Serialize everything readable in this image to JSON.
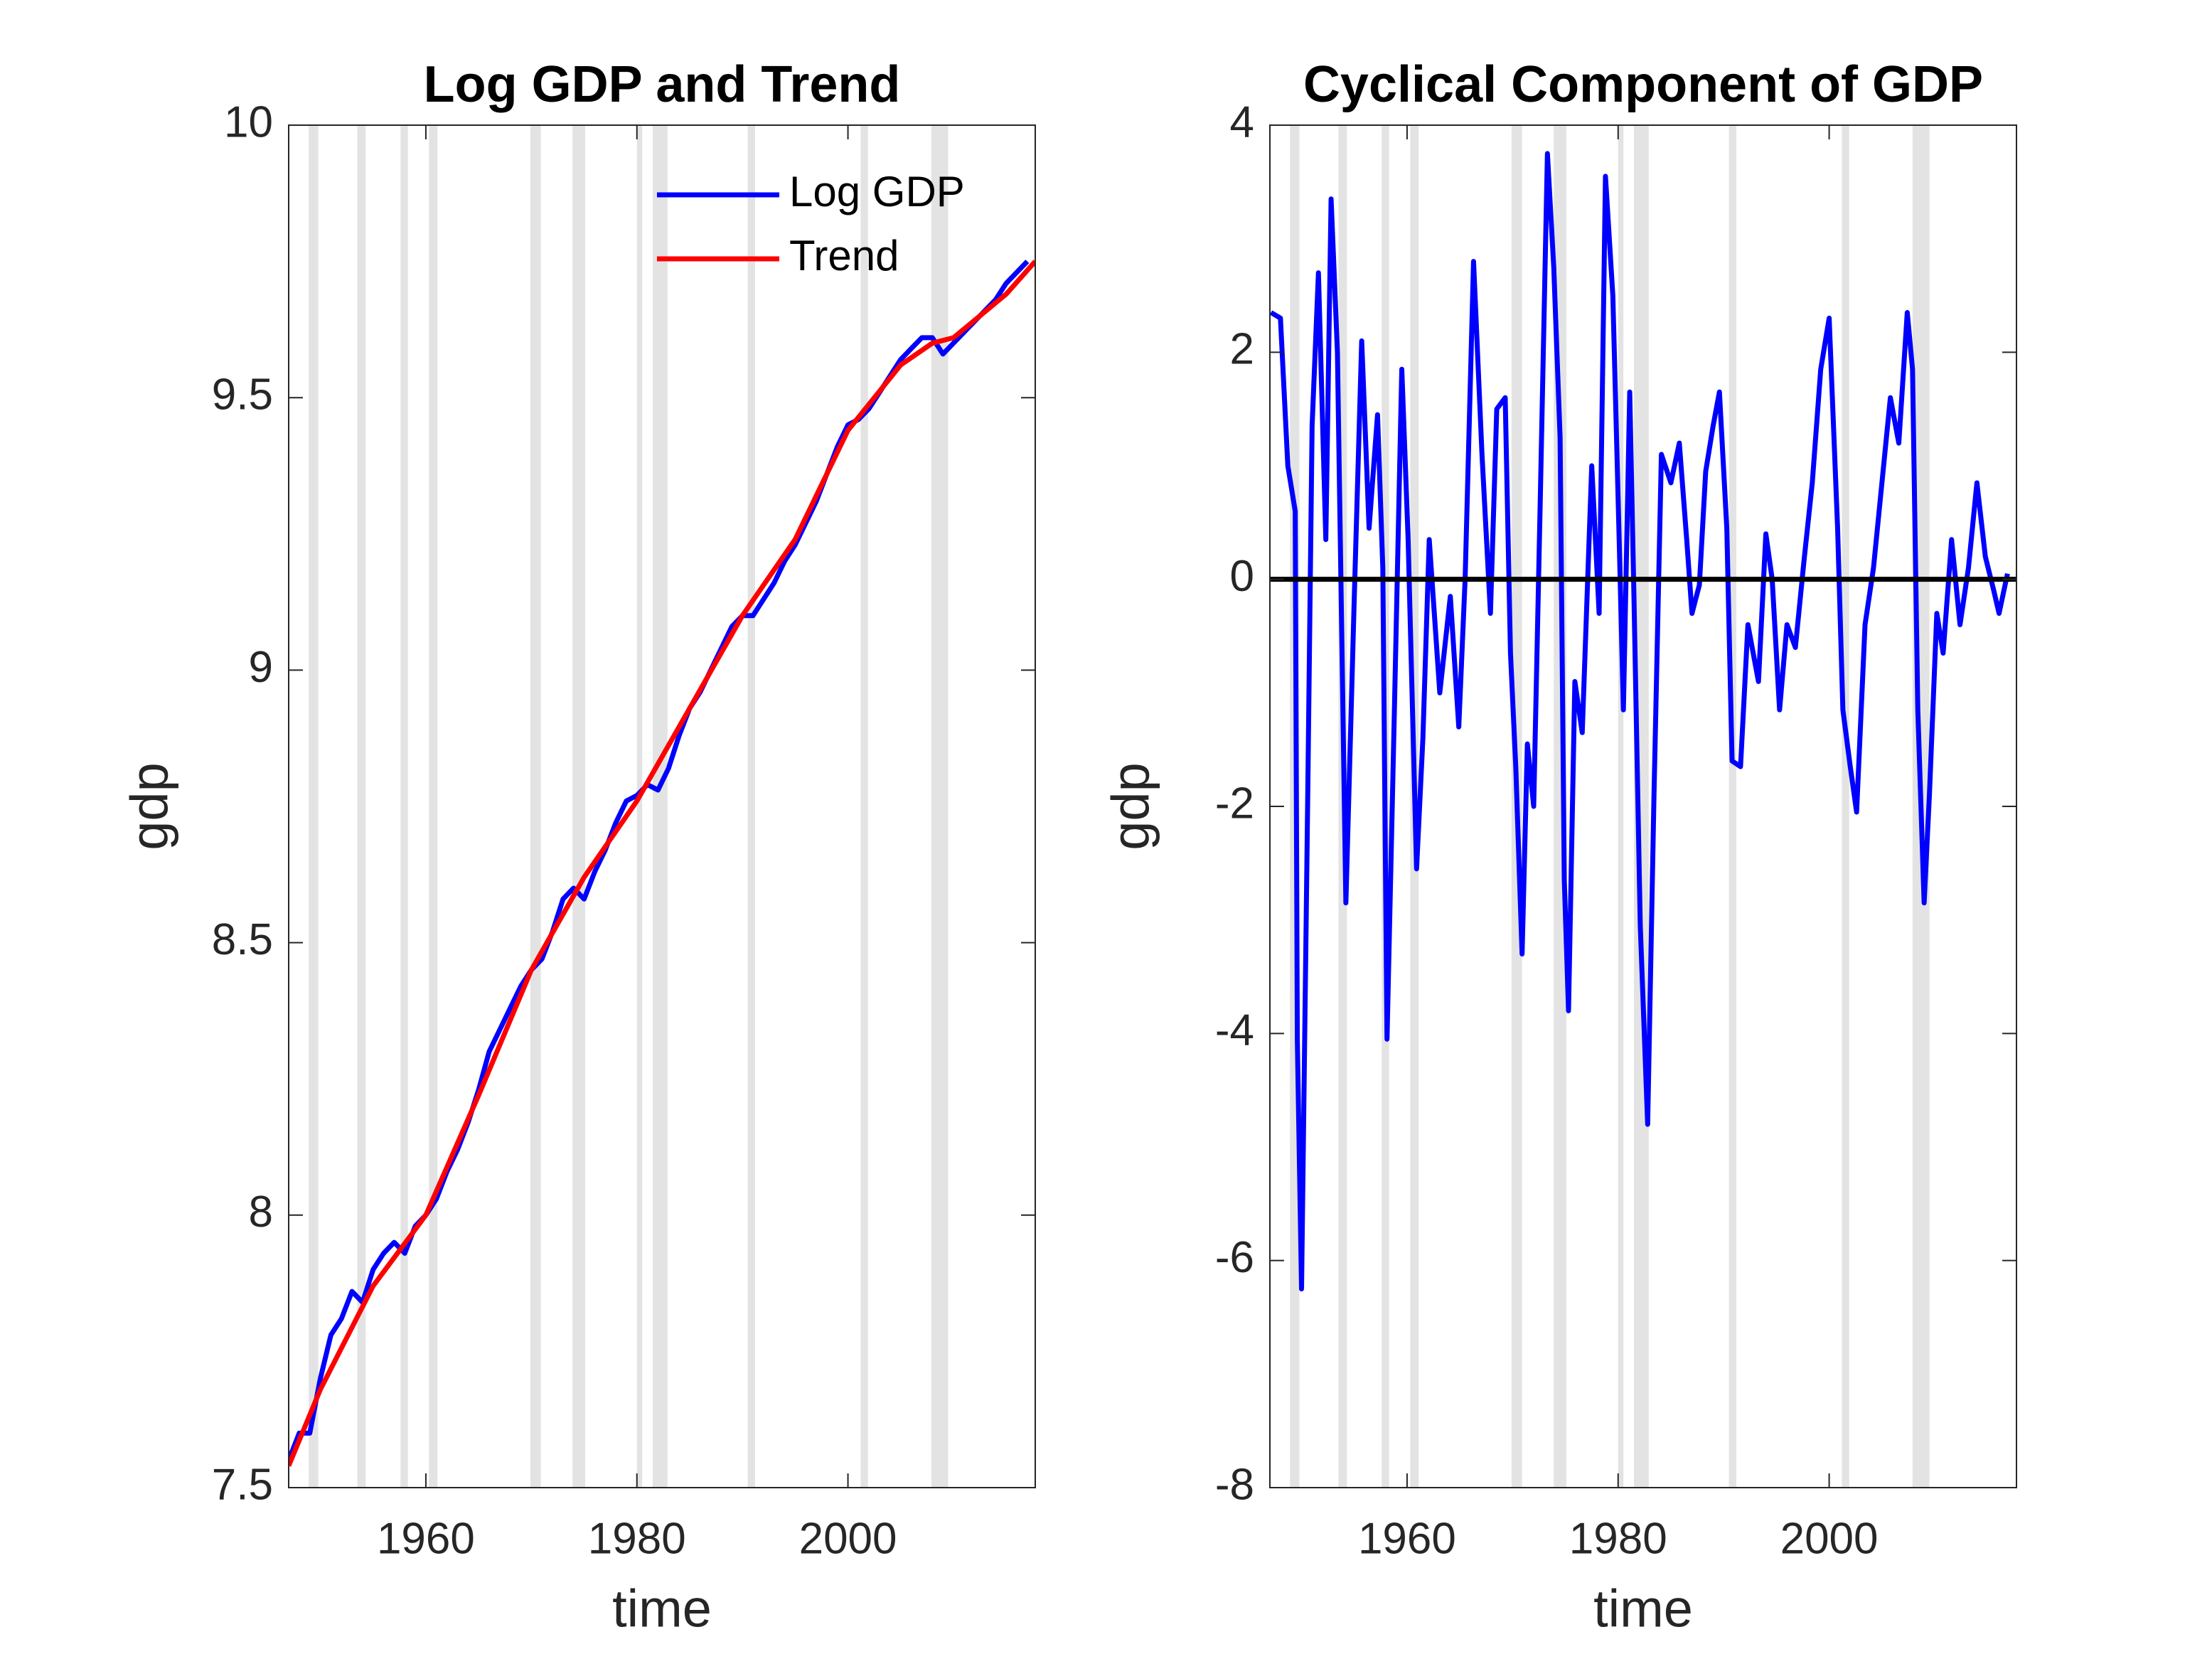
{
  "chart_data": [
    {
      "type": "line",
      "title": "Log GDP and Trend",
      "xlabel": "time",
      "ylabel": "gdp",
      "xlim": [
        1947,
        2017.75
      ],
      "xticks": [
        1960,
        1980,
        2000
      ],
      "ylim": [
        7.5,
        10
      ],
      "yticks": [
        7.5,
        8,
        8.5,
        9,
        9.5,
        10
      ],
      "legend": "upper right",
      "shade_color": "#e3e3e3",
      "shaded_regions": [
        [
          1948.9,
          1949.8
        ],
        [
          1953.5,
          1954.3
        ],
        [
          1957.6,
          1958.3
        ],
        [
          1960.3,
          1961.1
        ],
        [
          1969.9,
          1970.9
        ],
        [
          1973.9,
          1975.1
        ],
        [
          1980.0,
          1980.5
        ],
        [
          1981.5,
          1982.9
        ],
        [
          1990.5,
          1991.2
        ],
        [
          2001.2,
          2001.9
        ],
        [
          2007.9,
          2009.5
        ]
      ],
      "series": [
        {
          "name": "Log GDP",
          "color": "#0000ff",
          "x": [
            1947,
            1948,
            1949,
            1950,
            1951,
            1952,
            1953,
            1954,
            1955,
            1956,
            1957,
            1958,
            1959,
            1960,
            1961,
            1962,
            1963,
            1964,
            1965,
            1966,
            1967,
            1968,
            1969,
            1970,
            1971,
            1972,
            1973,
            1974,
            1975,
            1976,
            1977,
            1978,
            1979,
            1980,
            1981,
            1982,
            1983,
            1984,
            1985,
            1986,
            1987,
            1988,
            1989,
            1990,
            1991,
            1992,
            1993,
            1994,
            1995,
            1996,
            1997,
            1998,
            1999,
            2000,
            2001,
            2002,
            2003,
            2004,
            2005,
            2006,
            2007,
            2008,
            2009,
            2010,
            2011,
            2012,
            2013,
            2014,
            2015,
            2016,
            2017
          ],
          "values": [
            7.55,
            7.6,
            7.6,
            7.7,
            7.78,
            7.81,
            7.86,
            7.84,
            7.9,
            7.93,
            7.95,
            7.93,
            7.98,
            8.0,
            8.03,
            8.08,
            8.12,
            8.17,
            8.23,
            8.3,
            8.34,
            8.38,
            8.42,
            8.45,
            8.47,
            8.52,
            8.58,
            8.6,
            8.58,
            8.63,
            8.67,
            8.72,
            8.76,
            8.77,
            8.79,
            8.78,
            8.82,
            8.88,
            8.93,
            8.96,
            9.0,
            9.04,
            9.08,
            9.1,
            9.1,
            9.13,
            9.16,
            9.2,
            9.23,
            9.27,
            9.31,
            9.36,
            9.41,
            9.45,
            9.46,
            9.48,
            9.51,
            9.54,
            9.57,
            9.59,
            9.61,
            9.61,
            9.58,
            9.6,
            9.62,
            9.64,
            9.66,
            9.68,
            9.71,
            9.73,
            9.75
          ]
        },
        {
          "name": "Trend",
          "color": "#ff0000",
          "x": [
            1947,
            1950,
            1955,
            1960,
            1965,
            1970,
            1975,
            1980,
            1985,
            1990,
            1995,
            2000,
            2005,
            2008,
            2010,
            2015,
            2017.75
          ],
          "values": [
            7.54,
            7.68,
            7.87,
            8.0,
            8.22,
            8.45,
            8.62,
            8.76,
            8.93,
            9.1,
            9.24,
            9.44,
            9.56,
            9.6,
            9.61,
            9.69,
            9.75
          ]
        }
      ]
    },
    {
      "type": "line",
      "title": "Cyclical Component of GDP",
      "xlabel": "time",
      "ylabel": "gdp",
      "xlim": [
        1947,
        2017.75
      ],
      "xticks": [
        1960,
        1980,
        2000
      ],
      "ylim": [
        -8,
        4
      ],
      "yticks": [
        -8,
        -6,
        -4,
        -2,
        0,
        2,
        4
      ],
      "hline": {
        "value": 0,
        "color": "#000000"
      },
      "shade_color": "#e3e3e3",
      "shaded_regions": [
        [
          1948.9,
          1949.8
        ],
        [
          1953.5,
          1954.3
        ],
        [
          1957.6,
          1958.3
        ],
        [
          1960.3,
          1961.1
        ],
        [
          1969.9,
          1970.9
        ],
        [
          1973.9,
          1975.1
        ],
        [
          1980.0,
          1980.5
        ],
        [
          1981.5,
          1982.9
        ],
        [
          1990.5,
          1991.2
        ],
        [
          2001.2,
          2001.9
        ],
        [
          2007.9,
          2009.5
        ]
      ],
      "series": [
        {
          "color": "#0000ff",
          "x": [
            1947.1,
            1948,
            1948.7,
            1949.4,
            1949.6,
            1950,
            1950.6,
            1951,
            1951.6,
            1952.3,
            1952.8,
            1953.4,
            1954.2,
            1955,
            1955.7,
            1956.4,
            1957.2,
            1957.7,
            1958.1,
            1958.8,
            1959.5,
            1960.1,
            1960.9,
            1961.5,
            1962.1,
            1963.1,
            1964.1,
            1964.9,
            1965.5,
            1966.3,
            1967.1,
            1967.9,
            1968.5,
            1969.3,
            1969.8,
            1970.3,
            1970.9,
            1971.4,
            1972,
            1972.6,
            1973.3,
            1973.9,
            1974.5,
            1974.9,
            1975.3,
            1975.9,
            1976.6,
            1977.5,
            1978.2,
            1978.8,
            1979.5,
            1980.1,
            1980.5,
            1981.1,
            1981.5,
            1982.1,
            1982.8,
            1983.4,
            1984.1,
            1985,
            1985.8,
            1986.5,
            1987,
            1987.7,
            1988.3,
            1989,
            1989.6,
            1990.3,
            1990.8,
            1991.6,
            1992.3,
            1993.3,
            1994,
            1994.6,
            1995.3,
            1996,
            1996.8,
            1997.6,
            1998.4,
            1999.2,
            2000,
            2000.8,
            2001.3,
            2002,
            2002.6,
            2003.4,
            2004.2,
            2005,
            2005.8,
            2006.6,
            2007.4,
            2007.9,
            2008.4,
            2009,
            2009.5,
            2010.2,
            2010.8,
            2011.6,
            2012.4,
            2013.2,
            2014,
            2014.8,
            2015.6,
            2016.1,
            2016.9
          ],
          "values": [
            2.35,
            2.3,
            1.0,
            0.6,
            -4.05,
            -6.25,
            -1.8,
            1.35,
            2.7,
            0.35,
            3.35,
            2.0,
            -2.85,
            -0.15,
            2.1,
            0.45,
            1.45,
            0.1,
            -4.05,
            -1.15,
            1.85,
            0.35,
            -2.55,
            -1.4,
            0.35,
            -1.0,
            -0.15,
            -1.3,
            0.0,
            2.8,
            1.1,
            -0.3,
            1.5,
            1.6,
            -0.65,
            -1.65,
            -3.3,
            -1.45,
            -2.0,
            0.6,
            3.75,
            2.75,
            1.25,
            -2.65,
            -3.8,
            -0.9,
            -1.35,
            1.0,
            -0.3,
            3.55,
            2.5,
            0.35,
            -1.15,
            1.65,
            -0.15,
            -3.05,
            -4.8,
            -1.9,
            1.1,
            0.85,
            1.2,
            0.35,
            -0.3,
            -0.05,
            0.95,
            1.35,
            1.65,
            0.45,
            -1.6,
            -1.65,
            -0.4,
            -0.9,
            0.4,
            0.0,
            -1.15,
            -0.4,
            -0.6,
            0.15,
            0.85,
            1.85,
            2.3,
            0.45,
            -1.15,
            -1.65,
            -2.05,
            -0.4,
            0.1,
            0.85,
            1.6,
            1.2,
            2.35,
            1.85,
            -1.15,
            -2.85,
            -1.9,
            -0.3,
            -0.65,
            0.35,
            -0.4,
            0.1,
            0.85,
            0.2,
            -0.1,
            -0.3,
            0.05
          ]
        }
      ]
    }
  ]
}
